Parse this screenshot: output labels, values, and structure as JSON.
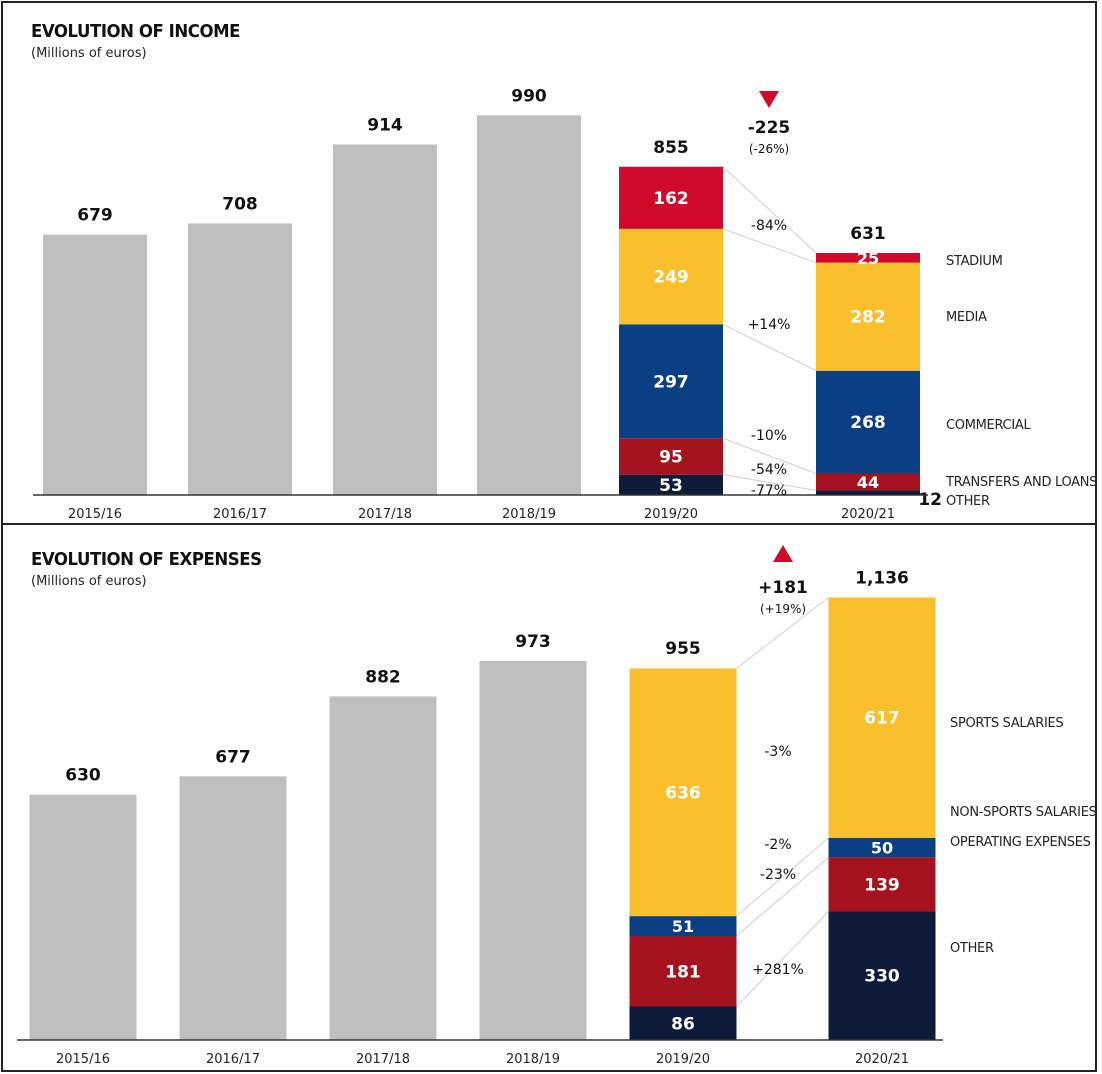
{
  "chart_data": [
    {
      "id": "income",
      "type": "bar",
      "stacked_partial": true,
      "title": "EVOLUTION OF INCOME",
      "subtitle": "(Millions of euros)",
      "categories": [
        "2015/16",
        "2016/17",
        "2017/18",
        "2018/19",
        "2019/20",
        "2020/21"
      ],
      "totals": [
        679,
        708,
        914,
        990,
        855,
        631
      ],
      "total_labels": [
        "679",
        "708",
        "914",
        "990",
        "855",
        "631"
      ],
      "stacked_categories": [
        "2019/20",
        "2020/21"
      ],
      "series": [
        {
          "name": "OTHER",
          "color": "#0e1b3a",
          "values": [
            53,
            12
          ],
          "labels": [
            "53",
            "12"
          ],
          "change": "-77%"
        },
        {
          "name": "TRANSFERS AND LOANS",
          "color": "#a5141e",
          "values": [
            95,
            44
          ],
          "labels": [
            "95",
            "44"
          ],
          "change": "-54%"
        },
        {
          "name": "COMMERCIAL",
          "color": "#0b3f83",
          "values": [
            297,
            268
          ],
          "labels": [
            "297",
            "268"
          ],
          "change": "-10%"
        },
        {
          "name": "MEDIA",
          "color": "#f9bf2c",
          "values": [
            249,
            282
          ],
          "labels": [
            "249",
            "282"
          ],
          "change": "+14%"
        },
        {
          "name": "STADIUM",
          "color": "#cf0a2c",
          "values": [
            162,
            25
          ],
          "labels": [
            "162",
            "25"
          ],
          "change": "-84%"
        }
      ],
      "delta": {
        "value": "-225",
        "percent": "(-26%)",
        "direction": "down",
        "arrow_color": "#cf0a2c"
      },
      "gray_color": "#c0bfc0",
      "xlabel": "",
      "ylabel": "",
      "ylim": [
        0,
        1050
      ],
      "grid": false,
      "legend": "right"
    },
    {
      "id": "expenses",
      "type": "bar",
      "stacked_partial": true,
      "title": "EVOLUTION OF EXPENSES",
      "subtitle": "(Millions of euros)",
      "categories": [
        "2015/16",
        "2016/17",
        "2017/18",
        "2018/19",
        "2019/20",
        "2020/21"
      ],
      "totals": [
        630,
        677,
        882,
        973,
        955,
        1136
      ],
      "total_labels": [
        "630",
        "677",
        "882",
        "973",
        "955",
        "1,136"
      ],
      "stacked_categories": [
        "2019/20",
        "2020/21"
      ],
      "series": [
        {
          "name": "OTHER",
          "color": "#0e1b3a",
          "values": [
            86,
            330
          ],
          "labels": [
            "86",
            "330"
          ],
          "change": "+281%"
        },
        {
          "name": "OPERATING EXPENSES",
          "color": "#a5141e",
          "values": [
            181,
            139
          ],
          "labels": [
            "181",
            "139"
          ],
          "change": "-23%"
        },
        {
          "name": "NON-SPORTS SALARIES",
          "color": "#0b3f83",
          "values": [
            51,
            50
          ],
          "labels": [
            "51",
            "50"
          ],
          "change": "-2%"
        },
        {
          "name": "SPORTS SALARIES",
          "color": "#f9bf2c",
          "values": [
            636,
            617
          ],
          "labels": [
            "636",
            "617"
          ],
          "change": "-3%"
        }
      ],
      "delta": {
        "value": "+181",
        "percent": "(+19%)",
        "direction": "up",
        "arrow_color": "#cf0a2c"
      },
      "gray_color": "#c0bfc0",
      "xlabel": "",
      "ylabel": "",
      "ylim": [
        0,
        1200
      ],
      "grid": false,
      "legend": "right"
    }
  ]
}
